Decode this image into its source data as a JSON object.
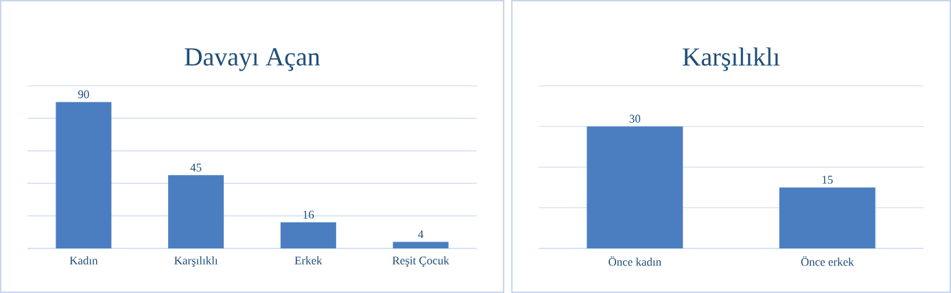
{
  "chart_data": [
    {
      "type": "bar",
      "title": "Davayı Açan",
      "categories": [
        "Kadın",
        "Karşılıklı",
        "Erkek",
        "Reşit Çocuk"
      ],
      "values": [
        90,
        45,
        16,
        4
      ],
      "color": "#4a7ec0",
      "ylim": [
        0,
        100
      ],
      "yticks": [
        {
          "value": 0,
          "label": null
        },
        {
          "value": 20,
          "label": null
        },
        {
          "value": 40,
          "label": null
        },
        {
          "value": 60,
          "label": null
        },
        {
          "value": 80,
          "label": null
        },
        {
          "value": 100,
          "label": null
        }
      ],
      "grid": "y",
      "tick_labels": "x",
      "data_labels": true
    },
    {
      "type": "bar",
      "title": "Karşılıklı",
      "categories": [
        "Önce kadın",
        "Önce erkek"
      ],
      "values": [
        30,
        15
      ],
      "color": "#4a7ec0",
      "ylim": [
        0,
        40
      ],
      "yticks": [
        {
          "value": 0,
          "label": null
        },
        {
          "value": 10,
          "label": null
        },
        {
          "value": 20,
          "label": null
        },
        {
          "value": 30,
          "label": null
        },
        {
          "value": 40,
          "label": null
        }
      ],
      "grid": "y",
      "tick_labels": "x",
      "data_labels": true
    }
  ]
}
